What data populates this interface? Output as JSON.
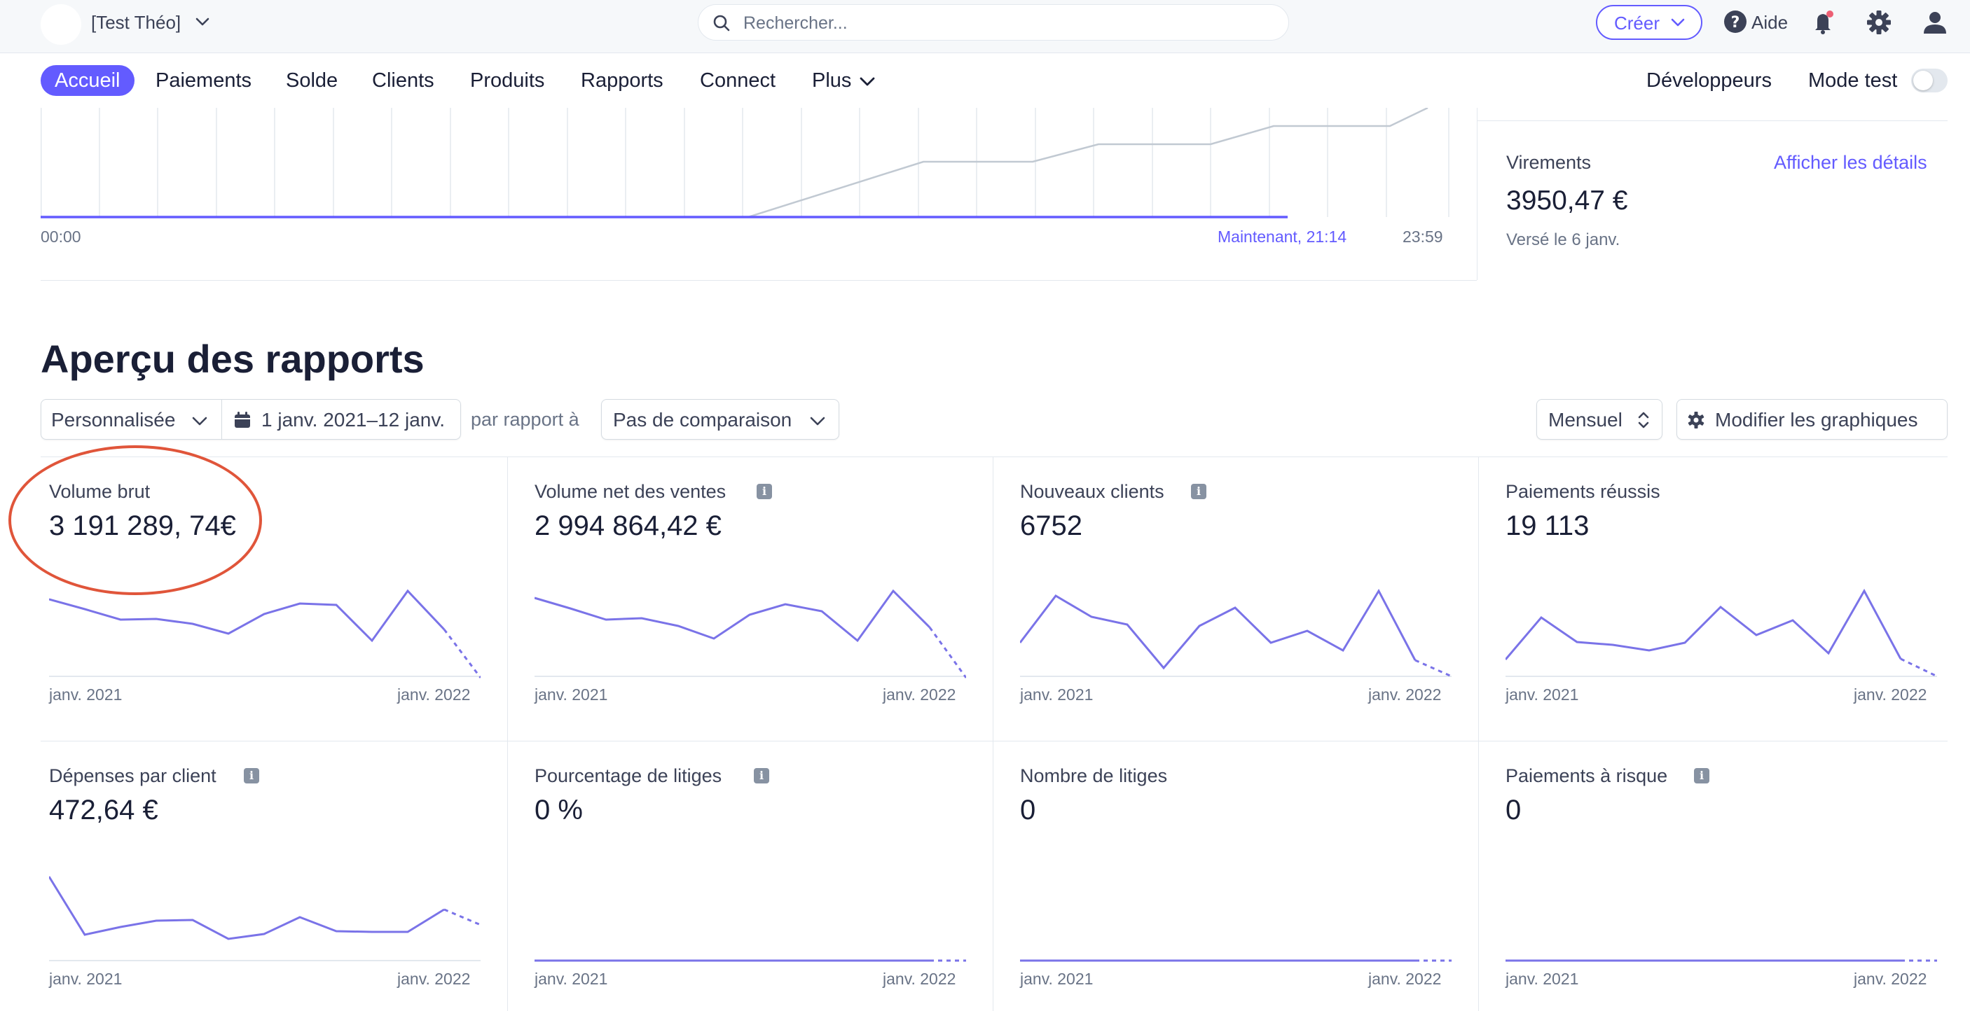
{
  "topbar": {
    "account_name": "[Test Théo]",
    "search_placeholder": "Rechercher...",
    "create_label": "Créer",
    "help_label": "Aide"
  },
  "nav": {
    "items": [
      "Accueil",
      "Paiements",
      "Solde",
      "Clients",
      "Produits",
      "Rapports",
      "Connect",
      "Plus"
    ],
    "active": "Accueil",
    "developers_label": "Développeurs",
    "test_mode_label": "Mode test",
    "test_mode_enabled": false
  },
  "today": {
    "time_start": "00:00",
    "time_now": "Maintenant, 21:14",
    "time_end": "23:59"
  },
  "transfers": {
    "title": "Virements",
    "link": "Afficher les détails",
    "value": "3950,47 €",
    "subtitle": "Versé le 6 janv."
  },
  "reports": {
    "title": "Aperçu des rapports",
    "period_select": "Personnalisée",
    "date_range": "1 janv. 2021–12 janv.",
    "compare_label": "par rapport à",
    "compare_select": "Pas de comparaison",
    "interval_select": "Mensuel",
    "edit_charts_label": "Modifier les graphiques",
    "axis_start": "janv. 2021",
    "axis_end": "janv. 2022",
    "cards": [
      {
        "title": "Volume brut",
        "value": "3 191 289, 74€",
        "info": false,
        "highlighted": true
      },
      {
        "title": "Volume net des ventes",
        "value": "2 994  864,42 €",
        "info": true
      },
      {
        "title": "Nouveaux clients",
        "value": "6752",
        "info": true
      },
      {
        "title": "Paiements réussis",
        "value": "19 113",
        "info": false
      },
      {
        "title": "Dépenses par client",
        "value": "472,64 €",
        "info": true
      },
      {
        "title": "Pourcentage de litiges",
        "value": "0 %",
        "info": true
      },
      {
        "title": "Nombre de litiges",
        "value": "0",
        "info": false
      },
      {
        "title": "Paiements à risque",
        "value": "0",
        "info": true
      }
    ]
  },
  "colors": {
    "accent": "#635bff",
    "highlight": "#e0553a",
    "muted_text": "#697386",
    "border": "#e3e8ee"
  }
}
